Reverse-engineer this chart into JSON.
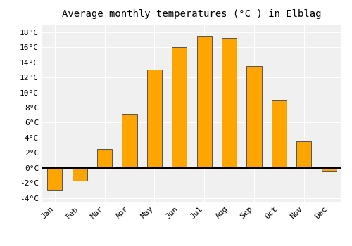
{
  "title": "Average monthly temperatures (°C ) in Elblag",
  "months": [
    "Jan",
    "Feb",
    "Mar",
    "Apr",
    "May",
    "Jun",
    "Jul",
    "Aug",
    "Sep",
    "Oct",
    "Nov",
    "Dec"
  ],
  "temperatures": [
    -3.0,
    -1.7,
    2.5,
    7.2,
    13.0,
    16.0,
    17.5,
    17.2,
    13.5,
    9.0,
    3.5,
    -0.5
  ],
  "bar_color": "#FFA500",
  "bar_edge_color": "#555555",
  "background_color": "#ffffff",
  "plot_bg_color": "#f0f0f0",
  "grid_color": "#ffffff",
  "ylim": [
    -4.5,
    19
  ],
  "yticks": [
    -4,
    -2,
    0,
    2,
    4,
    6,
    8,
    10,
    12,
    14,
    16,
    18
  ],
  "zero_line_color": "#000000",
  "title_fontsize": 10,
  "tick_fontsize": 8,
  "font_family": "monospace"
}
